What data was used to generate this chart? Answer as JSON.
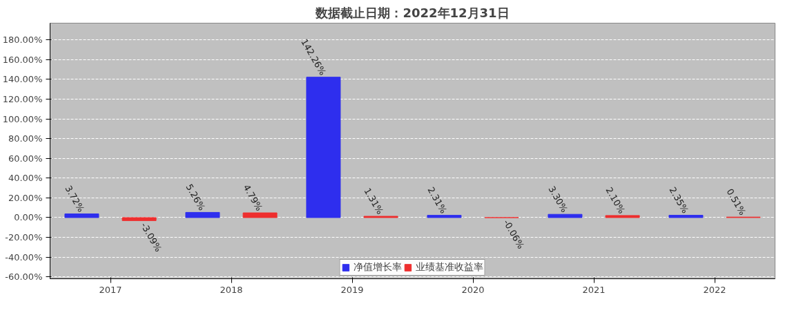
{
  "chart_data": {
    "type": "bar",
    "title": "数据截止日期：2022年12月31日",
    "categories": [
      "2017",
      "2018",
      "2019",
      "2020",
      "2021",
      "2022"
    ],
    "series": [
      {
        "name": "净值增长率",
        "color": "#2e2eee",
        "values": [
          3.72,
          5.26,
          142.26,
          2.31,
          3.3,
          2.35
        ],
        "value_labels": [
          "3.72%",
          "5.26%",
          "142.26%",
          "2.31%",
          "3.30%",
          "2.35%"
        ]
      },
      {
        "name": "业绩基准收益率",
        "color": "#ee2e2e",
        "values": [
          -3.09,
          4.79,
          1.31,
          -0.06,
          2.1,
          0.51
        ],
        "value_labels": [
          "-3.09%",
          "4.79%",
          "1.31%",
          "-0.06%",
          "2.10%",
          "0.51%"
        ]
      }
    ],
    "ylim": [
      -62,
      197
    ],
    "yticks": [
      {
        "value": -60,
        "label": "-60.00%"
      },
      {
        "value": -40,
        "label": "-40.00%"
      },
      {
        "value": -20,
        "label": "-20.00%"
      },
      {
        "value": 0,
        "label": "0.00%"
      },
      {
        "value": 20,
        "label": "20.00%"
      },
      {
        "value": 40,
        "label": "40.00%"
      },
      {
        "value": 60,
        "label": "60.00%"
      },
      {
        "value": 80,
        "label": "80.00%"
      },
      {
        "value": 100,
        "label": "100.00%"
      },
      {
        "value": 120,
        "label": "120.00%"
      },
      {
        "value": 140,
        "label": "140.00%"
      },
      {
        "value": 160,
        "label": "160.00%"
      },
      {
        "value": 180,
        "label": "180.00%"
      }
    ],
    "grid": "y",
    "legend": "bottom"
  }
}
